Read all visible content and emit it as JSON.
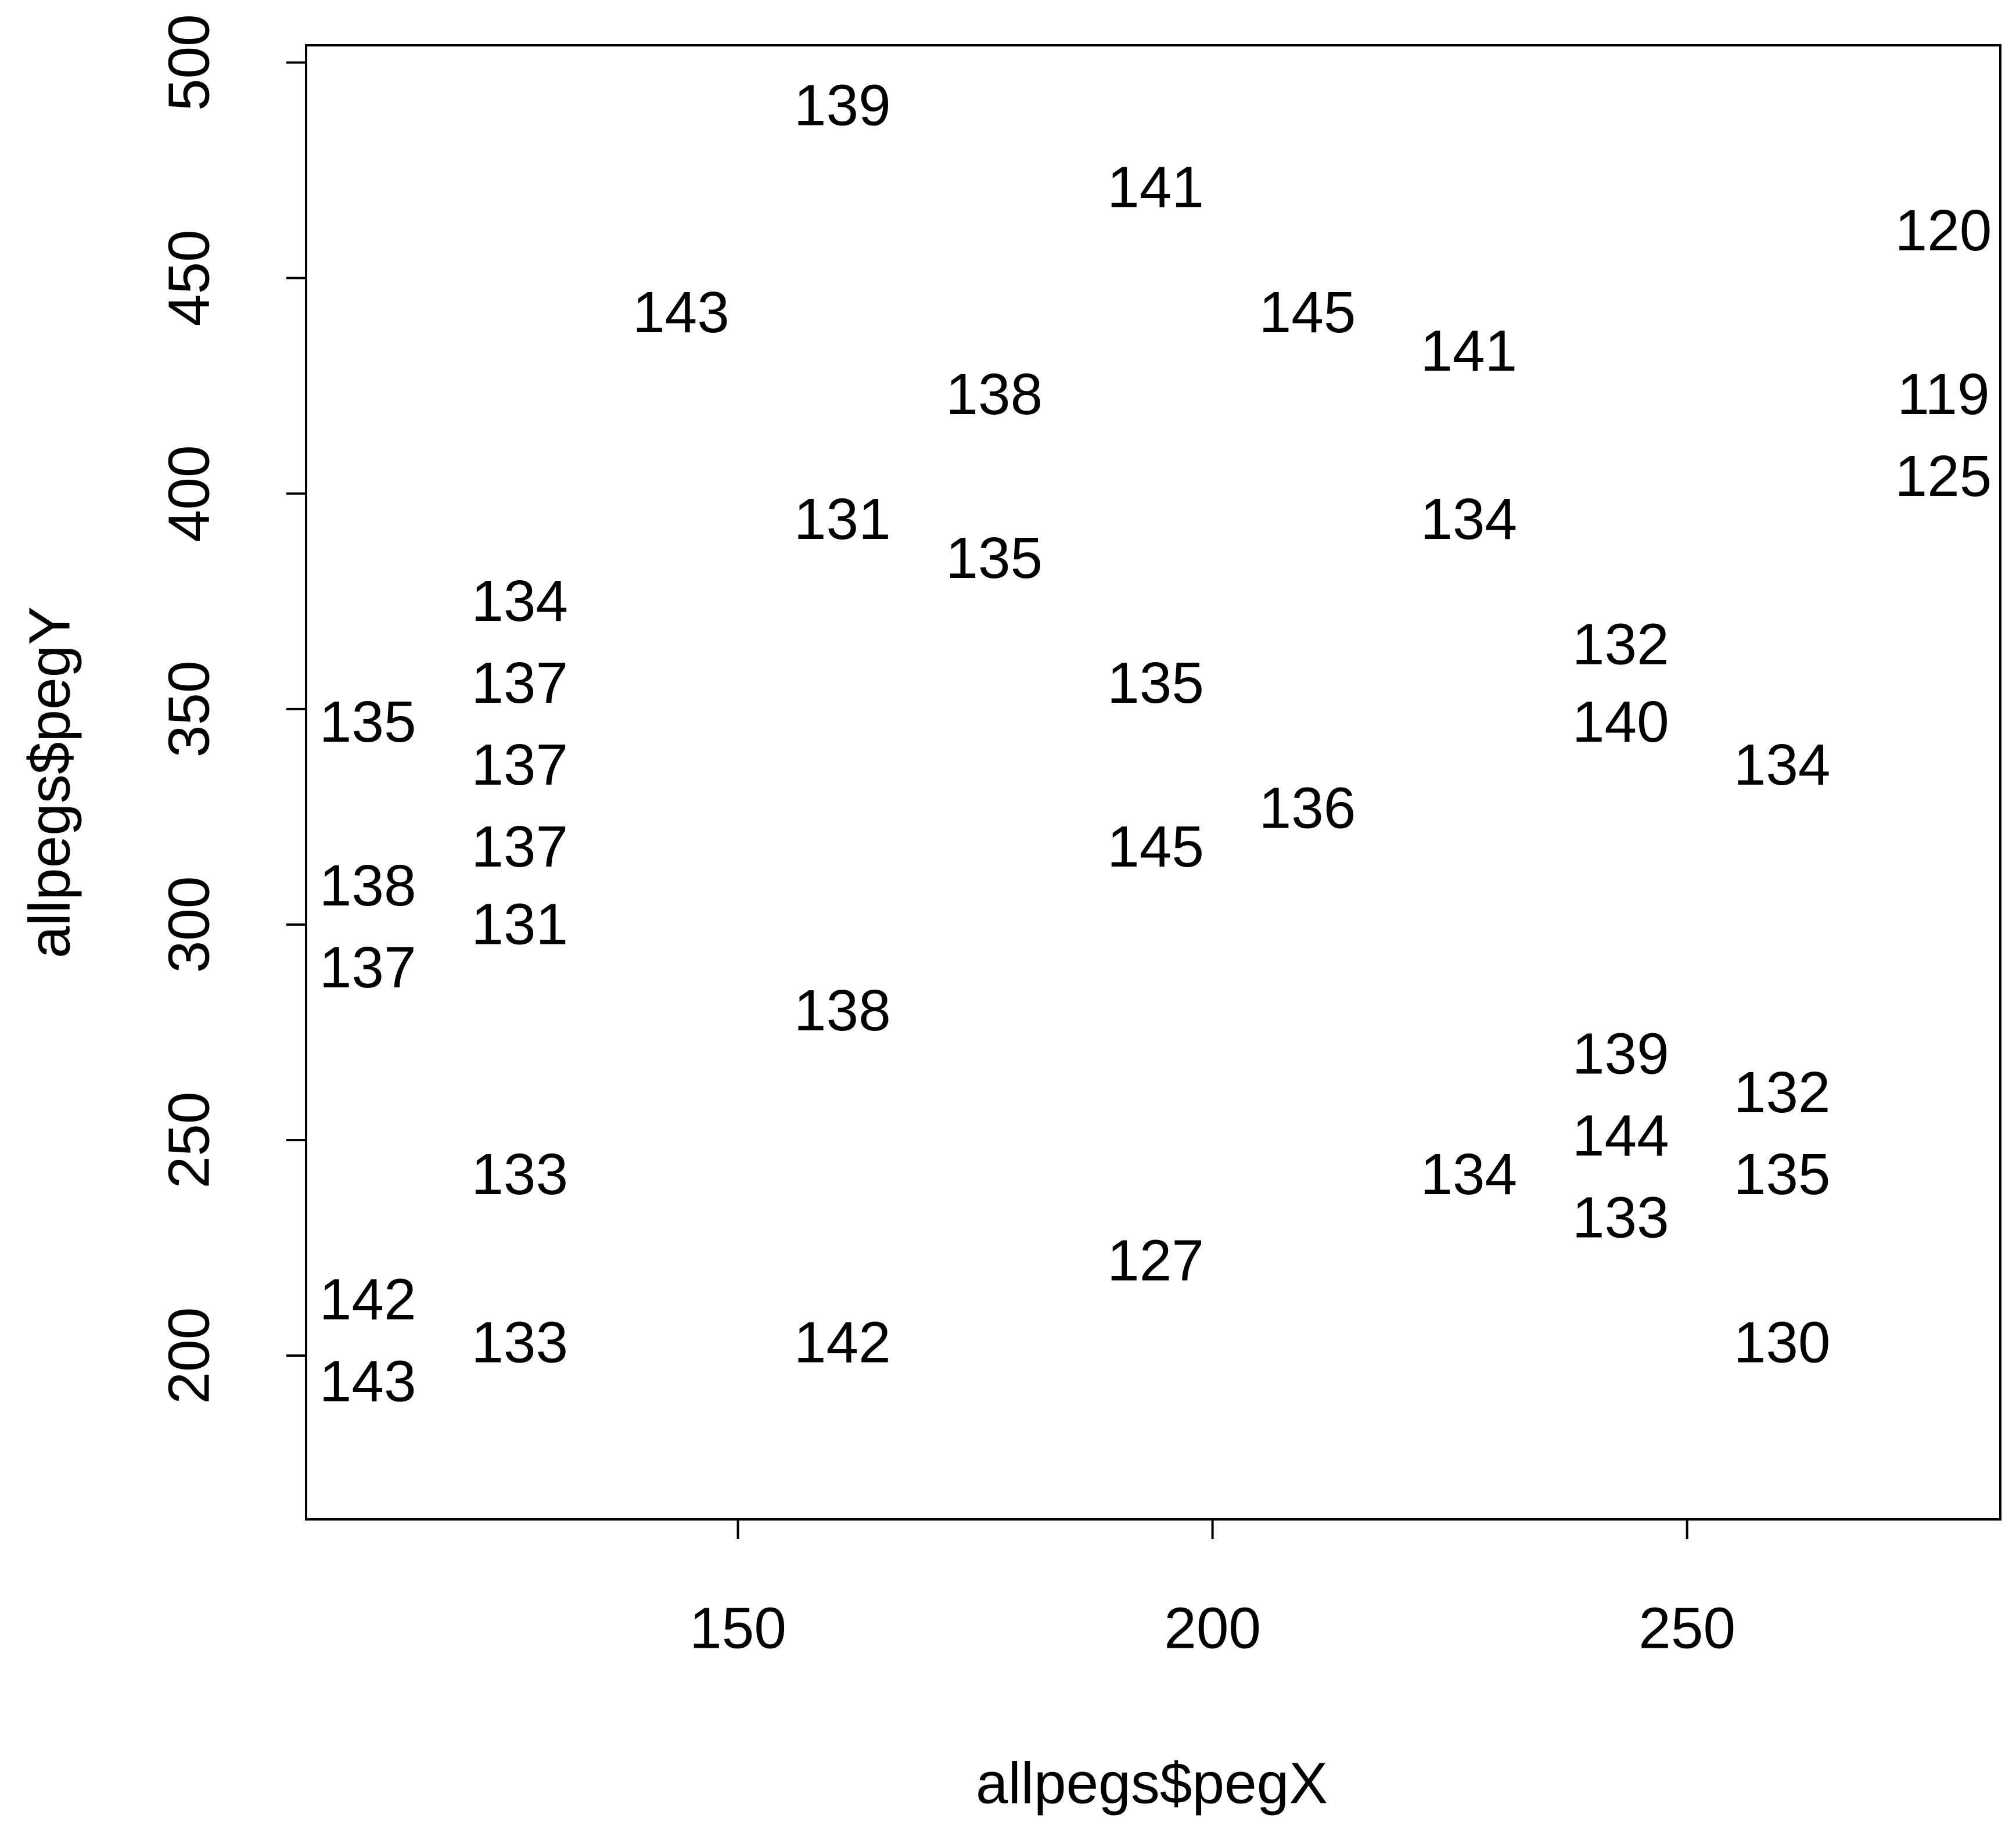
{
  "chart_data": {
    "type": "scatter",
    "x_label": "allpegs$pegX",
    "y_label": "allpegs$pegY",
    "x": [
      111,
      111,
      111,
      111,
      111,
      127,
      127,
      127,
      127,
      127,
      127,
      127,
      144,
      161,
      161,
      161,
      161,
      177,
      177,
      194,
      194,
      194,
      194,
      210,
      210,
      227,
      227,
      227,
      243,
      243,
      243,
      243,
      243,
      260,
      260,
      260,
      260,
      277,
      277,
      277
    ],
    "y": [
      346,
      308,
      289,
      212,
      193,
      374,
      355,
      336,
      317,
      299,
      241,
      202,
      441,
      489,
      393,
      279,
      202,
      422,
      384,
      470,
      355,
      317,
      221,
      441,
      326,
      432,
      393,
      241,
      364,
      346,
      269,
      250,
      231,
      336,
      260,
      241,
      202,
      460,
      422,
      403
    ],
    "labels": [
      135,
      138,
      137,
      142,
      143,
      134,
      137,
      137,
      137,
      131,
      133,
      133,
      143,
      139,
      131,
      138,
      142,
      138,
      135,
      141,
      135,
      145,
      127,
      145,
      136,
      141,
      134,
      134,
      132,
      140,
      139,
      144,
      133,
      134,
      132,
      135,
      130,
      120,
      119,
      125
    ],
    "xlim": [
      104.5,
      283
    ],
    "ylim": [
      162,
      504
    ],
    "xticks": [
      150,
      200,
      250
    ],
    "yticks": [
      200,
      250,
      300,
      350,
      400,
      450,
      500
    ]
  }
}
